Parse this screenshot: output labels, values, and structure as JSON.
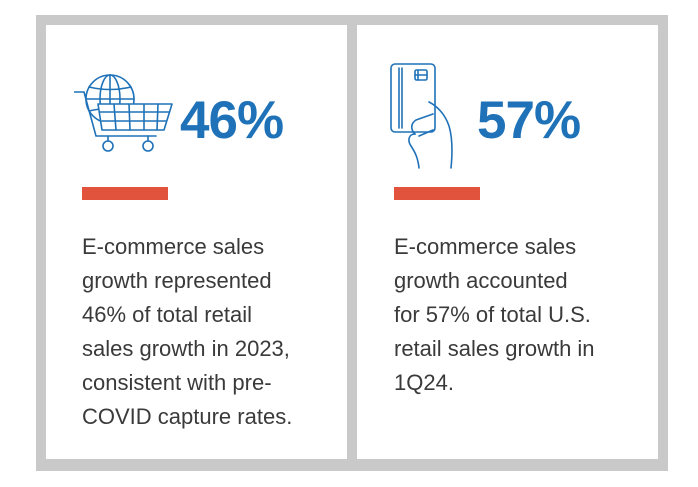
{
  "colors": {
    "accent_blue": "#1f72b8",
    "accent_red": "#e1533d",
    "frame_gray": "#c9c9c9",
    "text": "#3a3a3a"
  },
  "cards": [
    {
      "icon": "globe-shopping-cart-icon",
      "stat": "46%",
      "description_lines": [
        "E-commerce sales",
        "growth represented",
        "46% of total retail",
        "sales growth in 2023,",
        "consistent with pre-",
        "COVID capture rates."
      ]
    },
    {
      "icon": "hand-holding-card-icon",
      "stat": "57%",
      "description_lines": [
        "E-commerce sales",
        "growth accounted",
        "for 57% of total U.S.",
        "retail sales growth in",
        "1Q24."
      ]
    }
  ]
}
